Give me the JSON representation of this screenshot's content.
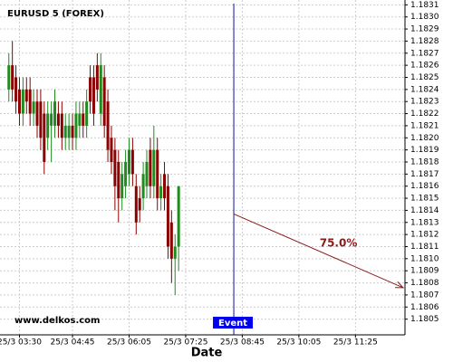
{
  "chart_data": {
    "type": "candlestick",
    "title": "EURUSD 5 (FOREX)",
    "watermark": "www.delkos.com",
    "x_label": "Date",
    "up_color": "#1e8c1e",
    "down_color": "#8b0000",
    "open": [
      1.1824,
      1.1826,
      1.1825,
      1.1824,
      1.1822,
      1.1824,
      1.1824,
      1.1822,
      1.1823,
      1.1823,
      1.1822,
      1.182,
      1.1821,
      1.1821,
      1.1822,
      1.1822,
      1.182,
      1.182,
      1.1821,
      1.182,
      1.1821,
      1.1822,
      1.1821,
      1.1825,
      1.1825,
      1.1826,
      1.1822,
      1.1825,
      1.1823,
      1.182,
      1.1819,
      1.1818,
      1.1815,
      1.1816,
      1.1817,
      1.1819,
      1.1816,
      1.1815,
      1.1815,
      1.1816,
      1.1819,
      1.1816,
      1.1819,
      1.1815,
      1.1817,
      1.1816,
      1.1813,
      1.181,
      1.1811
    ],
    "high": [
      1.1827,
      1.1828,
      1.1826,
      1.1825,
      1.1825,
      1.1825,
      1.1825,
      1.1824,
      1.1824,
      1.1824,
      1.1823,
      1.1823,
      1.1823,
      1.1824,
      1.1823,
      1.1823,
      1.1822,
      1.1822,
      1.1822,
      1.1823,
      1.1823,
      1.1823,
      1.1824,
      1.1826,
      1.1826,
      1.1827,
      1.1827,
      1.1826,
      1.1824,
      1.1821,
      1.182,
      1.1819,
      1.1818,
      1.1819,
      1.182,
      1.182,
      1.1817,
      1.1816,
      1.1818,
      1.1819,
      1.182,
      1.1821,
      1.182,
      1.1817,
      1.1818,
      1.1817,
      1.1814,
      1.1812,
      1.1816
    ],
    "low": [
      1.1823,
      1.1823,
      1.1822,
      1.1821,
      1.1821,
      1.1822,
      1.1821,
      1.1821,
      1.182,
      1.1819,
      1.1817,
      1.1819,
      1.1818,
      1.182,
      1.182,
      1.1819,
      1.1819,
      1.1819,
      1.1819,
      1.1819,
      1.182,
      1.182,
      1.182,
      1.1822,
      1.1821,
      1.1823,
      1.1821,
      1.182,
      1.1818,
      1.1817,
      1.1814,
      1.1813,
      1.1814,
      1.1815,
      1.1816,
      1.1816,
      1.1812,
      1.1813,
      1.1814,
      1.1815,
      1.1815,
      1.1815,
      1.1814,
      1.1814,
      1.1814,
      1.181,
      1.1808,
      1.1807,
      1.1809
    ],
    "close": [
      1.1826,
      1.1824,
      1.1823,
      1.1822,
      1.1824,
      1.1823,
      1.1822,
      1.1823,
      1.1821,
      1.182,
      1.1818,
      1.1822,
      1.1822,
      1.1823,
      1.1821,
      1.182,
      1.1821,
      1.1821,
      1.182,
      1.1822,
      1.1822,
      1.1821,
      1.1823,
      1.1823,
      1.1822,
      1.1824,
      1.1826,
      1.1821,
      1.1819,
      1.1818,
      1.1816,
      1.1815,
      1.1817,
      1.1818,
      1.1819,
      1.1817,
      1.1813,
      1.1814,
      1.1817,
      1.1818,
      1.1816,
      1.1819,
      1.1815,
      1.1816,
      1.1815,
      1.1811,
      1.181,
      1.1811,
      1.1816
    ],
    "xlim": [
      -2.5,
      112
    ],
    "xticks": [
      {
        "value": 3,
        "label": "25/3 03:30"
      },
      {
        "value": 18,
        "label": "25/3 04:45"
      },
      {
        "value": 34,
        "label": "25/3 06:05"
      },
      {
        "value": 50,
        "label": "25/3 07:25"
      },
      {
        "value": 66,
        "label": "25/3 08:45"
      },
      {
        "value": 82,
        "label": "25/3 10:05"
      },
      {
        "value": 98,
        "label": "25/3 11:25"
      }
    ],
    "ylim": [
      1.18037,
      1.18314
    ],
    "yticks": [
      1.1805,
      1.1806,
      1.1807,
      1.1808,
      1.1809,
      1.181,
      1.1811,
      1.1812,
      1.1813,
      1.1814,
      1.1815,
      1.1816,
      1.1817,
      1.1818,
      1.1819,
      1.182,
      1.1821,
      1.1822,
      1.1823,
      1.1824,
      1.1825,
      1.1826,
      1.1827,
      1.1828,
      1.1829,
      1.183,
      1.1831
    ],
    "yticks_labels": [
      "1.1805",
      "1.1806",
      "1.1807",
      "1.1808",
      "1.1809",
      "1.1810",
      "1.1811",
      "1.1812",
      "1.1813",
      "1.1814",
      "1.1815",
      "1.1816",
      "1.1817",
      "1.1818",
      "1.1819",
      "1.1820",
      "1.1821",
      "1.1822",
      "1.1823",
      "1.1824",
      "1.1825",
      "1.1826",
      "1.1827",
      "1.1828",
      "1.1829",
      "1.1830",
      "1.1831"
    ],
    "grid": true,
    "event": {
      "x": 63.6,
      "label": "Event",
      "color": "#1010a0"
    },
    "projection": {
      "x": [
        63.6,
        111.5
      ],
      "y": [
        1.18137,
        1.18076
      ],
      "label": "75.0%",
      "color": "#8b1a1a"
    }
  }
}
